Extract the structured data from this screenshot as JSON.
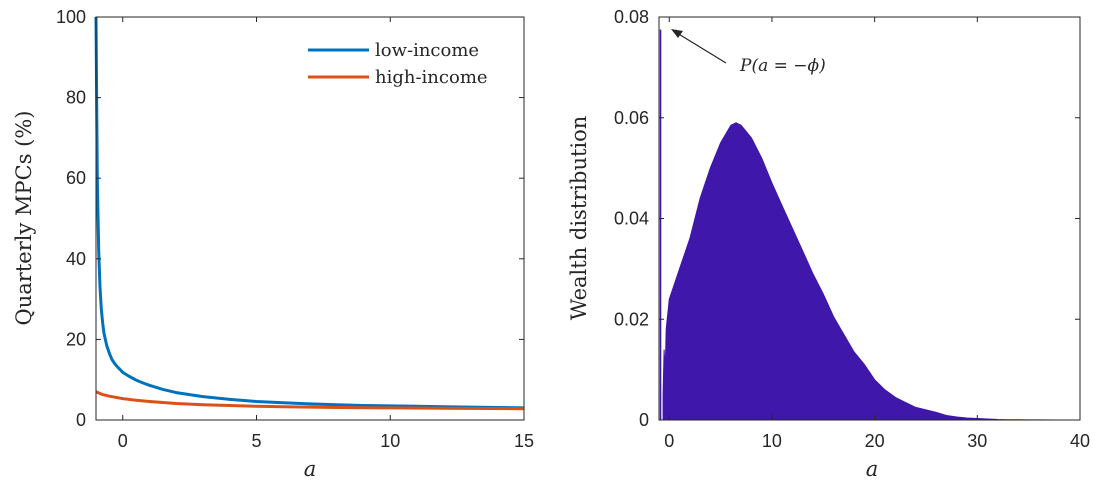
{
  "chart_data": [
    {
      "type": "line",
      "xlabel": "a",
      "ylabel": "Quarterly MPCs (%)",
      "xlim": [
        -1,
        15
      ],
      "ylim": [
        0,
        100
      ],
      "xticks": [
        0,
        5,
        10,
        15
      ],
      "yticks": [
        0,
        20,
        40,
        60,
        80,
        100
      ],
      "xtick_labels": [
        "0",
        "5",
        "10",
        "15"
      ],
      "ytick_labels": [
        "0",
        "20",
        "40",
        "60",
        "80",
        "100"
      ],
      "grid": false,
      "legend_position": "top-right",
      "series": [
        {
          "name": "low-income",
          "color": "#0072BD",
          "x": [
            -1.0,
            -0.95,
            -0.9,
            -0.85,
            -0.8,
            -0.75,
            -0.7,
            -0.6,
            -0.5,
            -0.4,
            -0.3,
            -0.2,
            -0.1,
            0,
            0.25,
            0.5,
            0.75,
            1,
            1.5,
            2,
            3,
            4,
            5,
            6,
            7,
            8,
            9,
            10,
            11,
            12,
            13,
            14,
            15
          ],
          "values": [
            100,
            60,
            42,
            33,
            27.5,
            24,
            21.5,
            18.5,
            16.5,
            15,
            14,
            13.2,
            12.5,
            11.8,
            10.8,
            9.9,
            9.2,
            8.6,
            7.6,
            6.8,
            5.8,
            5.1,
            4.6,
            4.3,
            4.0,
            3.8,
            3.6,
            3.5,
            3.4,
            3.3,
            3.2,
            3.1,
            3.0
          ]
        },
        {
          "name": "high-income",
          "color": "#D95319",
          "x": [
            -1.0,
            -0.75,
            -0.5,
            0,
            0.5,
            1,
            2,
            3,
            4,
            5,
            6,
            8,
            10,
            12,
            15
          ],
          "values": [
            7.0,
            6.3,
            5.9,
            5.3,
            4.9,
            4.6,
            4.1,
            3.8,
            3.6,
            3.4,
            3.3,
            3.1,
            3.0,
            2.9,
            2.8
          ]
        }
      ]
    },
    {
      "type": "area",
      "xlabel": "a",
      "ylabel": "Wealth distribution",
      "xlim": [
        -1,
        40
      ],
      "ylim": [
        0,
        0.08
      ],
      "xticks": [
        0,
        10,
        20,
        30,
        40
      ],
      "yticks": [
        0,
        0.02,
        0.04,
        0.06,
        0.08
      ],
      "xtick_labels": [
        "0",
        "10",
        "20",
        "30",
        "40"
      ],
      "ytick_labels": [
        "0",
        "0.02",
        "0.04",
        "0.06",
        "0.08"
      ],
      "grid": false,
      "annotation": "P(a = −ϕ)",
      "series": [
        {
          "color": "#3F17AA",
          "x": [
            -0.6,
            -0.5,
            -0.4,
            -0.3,
            -0.2,
            0,
            1,
            2,
            3,
            4,
            5,
            6,
            6.5,
            7,
            8,
            9,
            10,
            11,
            12,
            13,
            14,
            15,
            16,
            17,
            18,
            19,
            20,
            21,
            22,
            23,
            24,
            25,
            26,
            27,
            28,
            29,
            30,
            31,
            32,
            33,
            34,
            35,
            36,
            38,
            40
          ],
          "values": [
            0.005,
            0.014,
            0.01,
            0.018,
            0.02,
            0.024,
            0.03,
            0.036,
            0.044,
            0.05,
            0.055,
            0.0585,
            0.059,
            0.0585,
            0.056,
            0.052,
            0.047,
            0.0425,
            0.038,
            0.0335,
            0.029,
            0.025,
            0.0205,
            0.017,
            0.0135,
            0.011,
            0.008,
            0.006,
            0.0045,
            0.0035,
            0.0025,
            0.002,
            0.0015,
            0.0009,
            0.0006,
            0.0004,
            0.0003,
            0.0002,
            0.0001,
            5e-05,
            3e-05,
            2e-05,
            1e-05,
            0.0,
            0.0
          ]
        }
      ],
      "spike": {
        "x": -0.85,
        "value": 0.0775
      }
    }
  ]
}
